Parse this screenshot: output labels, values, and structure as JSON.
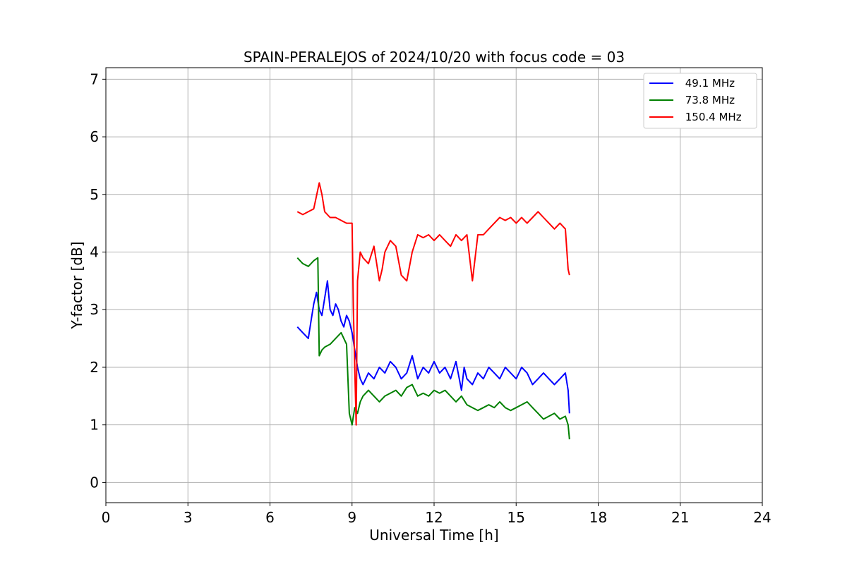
{
  "chart_data": {
    "type": "line",
    "title": "SPAIN-PERALEJOS of 2024/10/20 with focus code = 03",
    "xlabel": "Universal Time [h]",
    "ylabel": "Y-factor [dB]",
    "xlim": [
      0,
      24
    ],
    "ylim": [
      -0.35,
      7.2
    ],
    "xticks": [
      0,
      3,
      6,
      9,
      12,
      15,
      18,
      21,
      24
    ],
    "yticks": [
      0,
      1,
      2,
      3,
      4,
      5,
      6,
      7
    ],
    "grid": true,
    "legend_position": "top-right",
    "series": [
      {
        "name": " 49.1 MHz",
        "color": "#0000ff",
        "x": [
          7.0,
          7.2,
          7.4,
          7.5,
          7.6,
          7.7,
          7.8,
          7.9,
          8.0,
          8.1,
          8.2,
          8.3,
          8.4,
          8.5,
          8.6,
          8.7,
          8.8,
          8.9,
          9.0,
          9.1,
          9.2,
          9.3,
          9.4,
          9.6,
          9.8,
          10.0,
          10.2,
          10.4,
          10.6,
          10.8,
          11.0,
          11.2,
          11.4,
          11.6,
          11.8,
          12.0,
          12.2,
          12.4,
          12.6,
          12.8,
          13.0,
          13.1,
          13.2,
          13.4,
          13.6,
          13.8,
          14.0,
          14.2,
          14.4,
          14.6,
          14.8,
          15.0,
          15.2,
          15.4,
          15.6,
          15.8,
          16.0,
          16.2,
          16.4,
          16.6,
          16.8,
          16.9,
          16.95
        ],
        "y": [
          2.7,
          2.6,
          2.5,
          2.8,
          3.1,
          3.3,
          3.0,
          2.9,
          3.2,
          3.5,
          3.0,
          2.9,
          3.1,
          3.0,
          2.8,
          2.7,
          2.9,
          2.8,
          2.6,
          2.3,
          2.0,
          1.8,
          1.7,
          1.9,
          1.8,
          2.0,
          1.9,
          2.1,
          2.0,
          1.8,
          1.9,
          2.2,
          1.8,
          2.0,
          1.9,
          2.1,
          1.9,
          2.0,
          1.8,
          2.1,
          1.6,
          2.0,
          1.8,
          1.7,
          1.9,
          1.8,
          2.0,
          1.9,
          1.8,
          2.0,
          1.9,
          1.8,
          2.0,
          1.9,
          1.7,
          1.8,
          1.9,
          1.8,
          1.7,
          1.8,
          1.9,
          1.6,
          1.2
        ]
      },
      {
        "name": " 73.8 MHz",
        "color": "#008000",
        "x": [
          7.0,
          7.2,
          7.4,
          7.6,
          7.75,
          7.8,
          7.9,
          8.0,
          8.2,
          8.4,
          8.6,
          8.8,
          8.9,
          9.0,
          9.1,
          9.2,
          9.3,
          9.4,
          9.6,
          9.8,
          10.0,
          10.2,
          10.4,
          10.6,
          10.8,
          11.0,
          11.2,
          11.4,
          11.6,
          11.8,
          12.0,
          12.2,
          12.4,
          12.6,
          12.8,
          13.0,
          13.2,
          13.4,
          13.6,
          13.8,
          14.0,
          14.2,
          14.4,
          14.6,
          14.8,
          15.0,
          15.2,
          15.4,
          15.6,
          15.8,
          16.0,
          16.2,
          16.4,
          16.6,
          16.8,
          16.9,
          16.95
        ],
        "y": [
          3.9,
          3.8,
          3.75,
          3.85,
          3.9,
          2.2,
          2.3,
          2.35,
          2.4,
          2.5,
          2.6,
          2.4,
          1.2,
          1.0,
          1.3,
          1.2,
          1.4,
          1.5,
          1.6,
          1.5,
          1.4,
          1.5,
          1.55,
          1.6,
          1.5,
          1.65,
          1.7,
          1.5,
          1.55,
          1.5,
          1.6,
          1.55,
          1.6,
          1.5,
          1.4,
          1.5,
          1.35,
          1.3,
          1.25,
          1.3,
          1.35,
          1.3,
          1.4,
          1.3,
          1.25,
          1.3,
          1.35,
          1.4,
          1.3,
          1.2,
          1.1,
          1.15,
          1.2,
          1.1,
          1.15,
          1.0,
          0.75
        ]
      },
      {
        "name": " 150.4 MHz",
        "color": "#ff0000",
        "x": [
          7.0,
          7.2,
          7.4,
          7.6,
          7.8,
          7.9,
          8.0,
          8.2,
          8.4,
          8.6,
          8.8,
          9.0,
          9.05,
          9.1,
          9.15,
          9.2,
          9.3,
          9.4,
          9.6,
          9.8,
          10.0,
          10.1,
          10.2,
          10.4,
          10.6,
          10.8,
          11.0,
          11.2,
          11.4,
          11.6,
          11.8,
          12.0,
          12.2,
          12.4,
          12.6,
          12.8,
          13.0,
          13.2,
          13.4,
          13.6,
          13.8,
          14.0,
          14.2,
          14.4,
          14.6,
          14.8,
          15.0,
          15.2,
          15.4,
          15.6,
          15.8,
          16.0,
          16.2,
          16.4,
          16.6,
          16.8,
          16.9,
          16.95
        ],
        "y": [
          4.7,
          4.65,
          4.7,
          4.75,
          5.2,
          5.0,
          4.7,
          4.6,
          4.6,
          4.55,
          4.5,
          4.5,
          3.0,
          2.0,
          1.0,
          3.5,
          4.0,
          3.9,
          3.8,
          4.1,
          3.5,
          3.7,
          4.0,
          4.2,
          4.1,
          3.6,
          3.5,
          4.0,
          4.3,
          4.25,
          4.3,
          4.2,
          4.3,
          4.2,
          4.1,
          4.3,
          4.2,
          4.3,
          3.5,
          4.3,
          4.3,
          4.4,
          4.5,
          4.6,
          4.55,
          4.6,
          4.5,
          4.6,
          4.5,
          4.6,
          4.7,
          4.6,
          4.5,
          4.4,
          4.5,
          4.4,
          3.7,
          3.6
        ]
      }
    ]
  }
}
